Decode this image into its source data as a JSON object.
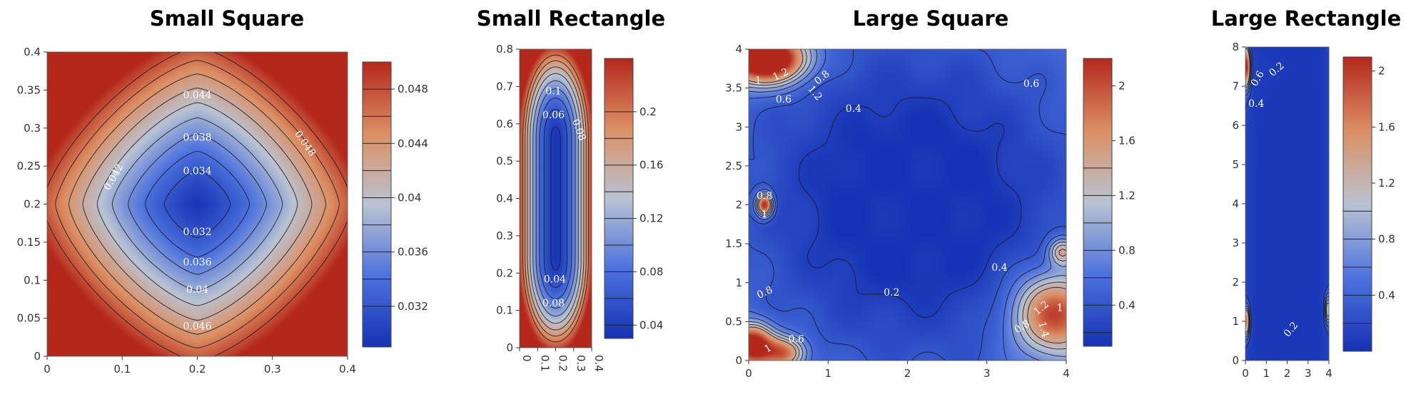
{
  "colormap": {
    "name": "cool-to-warm",
    "stops": [
      "#1432b4",
      "#4d72dd",
      "#b9c3d2",
      "#dc8f63",
      "#b4281c"
    ]
  },
  "chart_data": [
    {
      "id": "small-square",
      "type": "heatmap",
      "title": "Small Square",
      "xlim": [
        0,
        0.4
      ],
      "ylim": [
        0,
        0.4
      ],
      "x_ticks": [
        "0",
        "0.1",
        "0.2",
        "0.3",
        "0.4"
      ],
      "y_ticks": [
        "0",
        "0.05",
        "0.1",
        "0.15",
        "0.2",
        "0.25",
        "0.3",
        "0.35",
        "0.4"
      ],
      "colorbar": {
        "range": [
          0.029,
          0.05
        ],
        "ticks": [
          "0.032",
          "0.036",
          "0.04",
          "0.044",
          "0.048"
        ]
      },
      "contour_levels": [
        0.032,
        0.034,
        0.036,
        0.038,
        0.04,
        0.042,
        0.044,
        0.046,
        0.048
      ],
      "contour_labels": [
        "0.044",
        "0.038",
        "0.034",
        "0.032",
        "0.036",
        "0.04",
        "0.046",
        "0.042",
        "0.048"
      ],
      "field": {
        "kind": "diamond",
        "center": [
          0.2,
          0.2
        ],
        "min": 0.0295,
        "max": 0.052
      }
    },
    {
      "id": "small-rectangle",
      "type": "heatmap",
      "title": "Small Rectangle",
      "xlim": [
        0,
        0.4
      ],
      "ylim": [
        0,
        0.8
      ],
      "x_ticks": [
        "0",
        "0.1",
        "0.2",
        "0.3",
        "0.4"
      ],
      "y_ticks": [
        "0",
        "0.1",
        "0.2",
        "0.3",
        "0.4",
        "0.5",
        "0.6",
        "0.7",
        "0.8"
      ],
      "colorbar": {
        "range": [
          0.03,
          0.24
        ],
        "ticks": [
          "0.04",
          "0.08",
          "0.12",
          "0.16",
          "0.2"
        ]
      },
      "contour_levels": [
        0.04,
        0.06,
        0.08,
        0.1,
        0.12,
        0.14,
        0.16,
        0.18,
        0.2
      ],
      "contour_labels": [
        "0.1",
        "0.06",
        "0.08",
        "0.04",
        "0.08"
      ],
      "field": {
        "kind": "stadium",
        "center": [
          0.2,
          0.4
        ],
        "min": 0.035,
        "max": 0.25
      }
    },
    {
      "id": "large-square",
      "type": "heatmap",
      "title": "Large Square",
      "xlim": [
        0,
        4
      ],
      "ylim": [
        0,
        4
      ],
      "x_ticks": [
        "0",
        "1",
        "2",
        "3",
        "4"
      ],
      "y_ticks": [
        "0",
        "0.5",
        "1",
        "1.5",
        "2",
        "2.5",
        "3",
        "3.5",
        "4"
      ],
      "colorbar": {
        "range": [
          0.1,
          2.2
        ],
        "ticks": [
          "0.4",
          "0.8",
          "1.2",
          "1.6",
          "2"
        ]
      },
      "contour_levels": [
        0.2,
        0.4,
        0.6,
        0.8,
        1.0,
        1.2,
        1.4
      ],
      "contour_labels": [
        "1.2",
        "1",
        "0.8",
        "0.6",
        "1.2",
        "0.4",
        "0.6",
        "0.8",
        "1",
        "0.8",
        "0.4",
        "0.2",
        "1.2",
        "0.8",
        "1",
        "1.4",
        "0.6",
        "1"
      ],
      "field": {
        "kind": "hotspots",
        "base": 0.12,
        "ring": 0.45
      }
    },
    {
      "id": "large-rectangle",
      "type": "heatmap",
      "title": "Large Rectangle",
      "xlim": [
        0,
        4
      ],
      "ylim": [
        0,
        8
      ],
      "x_ticks": [
        "0",
        "1",
        "2",
        "3",
        "4"
      ],
      "y_ticks": [
        "0",
        "1",
        "2",
        "3",
        "4",
        "5",
        "6",
        "7",
        "8"
      ],
      "colorbar": {
        "range": [
          0.0,
          2.1
        ],
        "ticks": [
          "0.4",
          "0.8",
          "1.2",
          "1.6",
          "2"
        ]
      },
      "contour_levels": [
        0.2,
        0.4,
        0.6,
        0.8,
        1.0
      ],
      "contour_labels": [
        "0.2",
        "0.4",
        "0.6",
        "0.2"
      ],
      "field": {
        "kind": "edges",
        "base": 0.05
      }
    }
  ]
}
